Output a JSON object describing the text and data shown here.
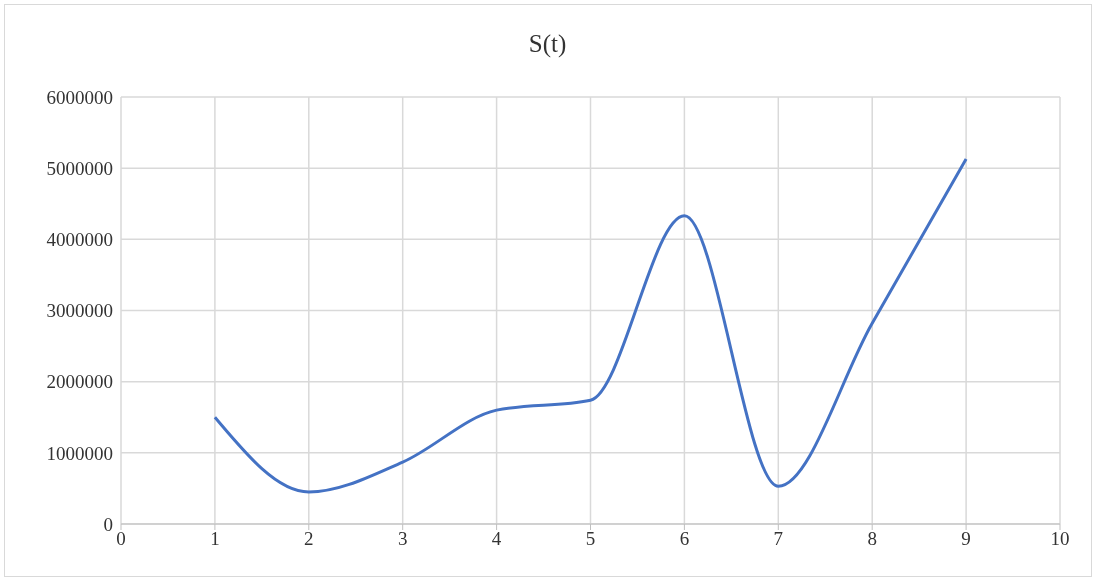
{
  "chart_data": {
    "type": "line",
    "title": "S(t)",
    "x": [
      1,
      2,
      3,
      4,
      5,
      6,
      7,
      8,
      9
    ],
    "series": [
      {
        "color": "#4472c4",
        "values": [
          1500000,
          450000,
          870000,
          1600000,
          1740000,
          4330000,
          530000,
          2820000,
          5130000
        ]
      }
    ],
    "xlim": [
      0,
      10
    ],
    "xticks": [
      0,
      1,
      2,
      3,
      4,
      5,
      6,
      7,
      8,
      9,
      10
    ],
    "ylim": [
      0,
      6000000
    ],
    "yticks": [
      0,
      1000000,
      2000000,
      3000000,
      4000000,
      5000000,
      6000000
    ],
    "grid": true,
    "legend": false,
    "marker": "none",
    "line_style": "solid"
  }
}
